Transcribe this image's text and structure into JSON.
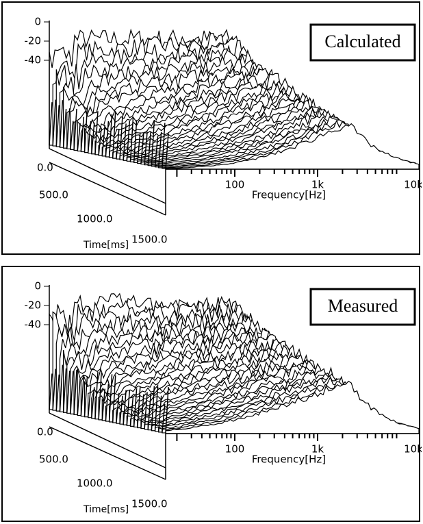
{
  "panels": [
    {
      "label": "Calculated",
      "z_ticks": [
        "0",
        "-20",
        "-40"
      ],
      "time_ticks": [
        "0.0",
        "500.0",
        "1000.0",
        "1500.0"
      ],
      "time_label": "Time[ms]",
      "freq_ticks": [
        "100",
        "1k",
        "10k"
      ],
      "freq_label": "Frequency[Hz]"
    },
    {
      "label": "Measured",
      "z_ticks": [
        "0",
        "-20",
        "-40"
      ],
      "time_ticks": [
        "0.0",
        "500.0",
        "1000.0",
        "1500.0"
      ],
      "time_label": "Time[ms]",
      "freq_ticks": [
        "100",
        "1k",
        "10k"
      ],
      "freq_label": "Frequency[Hz]"
    }
  ]
}
